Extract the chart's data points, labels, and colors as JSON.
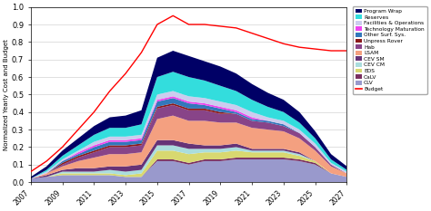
{
  "years": [
    2007,
    2008,
    2009,
    2010,
    2011,
    2012,
    2013,
    2014,
    2015,
    2016,
    2017,
    2018,
    2019,
    2020,
    2021,
    2022,
    2023,
    2024,
    2025,
    2026,
    2027
  ],
  "series": {
    "CLV": [
      0.02,
      0.03,
      0.04,
      0.04,
      0.04,
      0.04,
      0.03,
      0.03,
      0.12,
      0.12,
      0.1,
      0.12,
      0.12,
      0.13,
      0.13,
      0.13,
      0.13,
      0.12,
      0.1,
      0.05,
      0.03
    ],
    "CaLV": [
      0.0,
      0.0,
      0.0,
      0.0,
      0.0,
      0.0,
      0.0,
      0.0,
      0.01,
      0.01,
      0.01,
      0.01,
      0.01,
      0.01,
      0.01,
      0.01,
      0.01,
      0.01,
      0.01,
      0.0,
      0.0
    ],
    "EDS": [
      0.0,
      0.0,
      0.01,
      0.01,
      0.01,
      0.01,
      0.01,
      0.02,
      0.05,
      0.05,
      0.05,
      0.04,
      0.04,
      0.04,
      0.03,
      0.03,
      0.03,
      0.02,
      0.01,
      0.0,
      0.0
    ],
    "CEV CM": [
      0.0,
      0.0,
      0.01,
      0.01,
      0.01,
      0.02,
      0.02,
      0.02,
      0.03,
      0.03,
      0.03,
      0.02,
      0.02,
      0.02,
      0.01,
      0.01,
      0.01,
      0.01,
      0.0,
      0.0,
      0.0
    ],
    "CEV SM": [
      0.0,
      0.01,
      0.01,
      0.02,
      0.02,
      0.02,
      0.03,
      0.03,
      0.03,
      0.03,
      0.03,
      0.02,
      0.02,
      0.02,
      0.01,
      0.01,
      0.01,
      0.01,
      0.0,
      0.0,
      0.0
    ],
    "LSAM": [
      0.0,
      0.01,
      0.02,
      0.04,
      0.06,
      0.07,
      0.07,
      0.07,
      0.12,
      0.14,
      0.13,
      0.14,
      0.13,
      0.12,
      0.12,
      0.11,
      0.1,
      0.08,
      0.06,
      0.04,
      0.02
    ],
    "Hab": [
      0.0,
      0.0,
      0.01,
      0.02,
      0.03,
      0.04,
      0.04,
      0.04,
      0.06,
      0.06,
      0.06,
      0.06,
      0.05,
      0.05,
      0.04,
      0.04,
      0.03,
      0.03,
      0.02,
      0.01,
      0.0
    ],
    "Unpress Rover": [
      0.0,
      0.0,
      0.01,
      0.01,
      0.01,
      0.01,
      0.01,
      0.01,
      0.01,
      0.01,
      0.01,
      0.01,
      0.01,
      0.0,
      0.0,
      0.0,
      0.0,
      0.0,
      0.0,
      0.0,
      0.0
    ],
    "Other Surf. Sys.": [
      0.0,
      0.0,
      0.01,
      0.01,
      0.02,
      0.02,
      0.02,
      0.02,
      0.03,
      0.03,
      0.03,
      0.02,
      0.02,
      0.01,
      0.01,
      0.01,
      0.01,
      0.0,
      0.0,
      0.0,
      0.0
    ],
    "Technology Maturation": [
      0.0,
      0.0,
      0.0,
      0.01,
      0.01,
      0.01,
      0.01,
      0.01,
      0.01,
      0.01,
      0.01,
      0.01,
      0.01,
      0.01,
      0.01,
      0.0,
      0.0,
      0.0,
      0.0,
      0.0,
      0.0
    ],
    "Facilities & Operations": [
      0.0,
      0.01,
      0.01,
      0.01,
      0.02,
      0.02,
      0.02,
      0.02,
      0.03,
      0.03,
      0.03,
      0.03,
      0.03,
      0.03,
      0.03,
      0.02,
      0.02,
      0.02,
      0.02,
      0.01,
      0.01
    ],
    "Reserves": [
      0.0,
      0.01,
      0.02,
      0.03,
      0.04,
      0.05,
      0.05,
      0.06,
      0.1,
      0.11,
      0.11,
      0.1,
      0.09,
      0.08,
      0.07,
      0.06,
      0.05,
      0.04,
      0.03,
      0.02,
      0.01
    ],
    "Program Wrap": [
      0.01,
      0.02,
      0.03,
      0.04,
      0.05,
      0.06,
      0.07,
      0.08,
      0.11,
      0.12,
      0.12,
      0.11,
      0.11,
      0.1,
      0.09,
      0.08,
      0.07,
      0.06,
      0.04,
      0.03,
      0.02
    ]
  },
  "colors": {
    "CLV": "#9999cc",
    "CaLV": "#7a3060",
    "EDS": "#d8d870",
    "CEV CM": "#aadddd",
    "CEV SM": "#663377",
    "LSAM": "#f4a080",
    "Hab": "#884488",
    "Unpress Rover": "#8b1a1a",
    "Other Surf. Sys.": "#3377bb",
    "Technology Maturation": "#ee44ee",
    "Facilities & Operations": "#ccccee",
    "Reserves": "#33dddd",
    "Program Wrap": "#000066"
  },
  "budget_line": [
    0.06,
    0.12,
    0.2,
    0.3,
    0.4,
    0.52,
    0.62,
    0.74,
    0.9,
    0.95,
    0.9,
    0.9,
    0.89,
    0.88,
    0.85,
    0.82,
    0.79,
    0.77,
    0.76,
    0.75,
    0.75
  ],
  "ylabel": "Normalized Yearly Cost and Budget",
  "ylim": [
    0.0,
    1.0
  ],
  "yticks": [
    0.0,
    0.1,
    0.2,
    0.3,
    0.4,
    0.5,
    0.6,
    0.7,
    0.8,
    0.9,
    1.0
  ],
  "xtick_years": [
    2007,
    2009,
    2011,
    2013,
    2015,
    2017,
    2019,
    2021,
    2023,
    2025,
    2027
  ],
  "legend_order": [
    "Program Wrap",
    "Reserves",
    "Facilities & Operations",
    "Technology Maturation",
    "Other Surf. Sys.",
    "Unpress Rover",
    "Hab",
    "LSAM",
    "CEV SM",
    "CEV CM",
    "EDS",
    "CaLV",
    "CLV",
    "Budget"
  ]
}
